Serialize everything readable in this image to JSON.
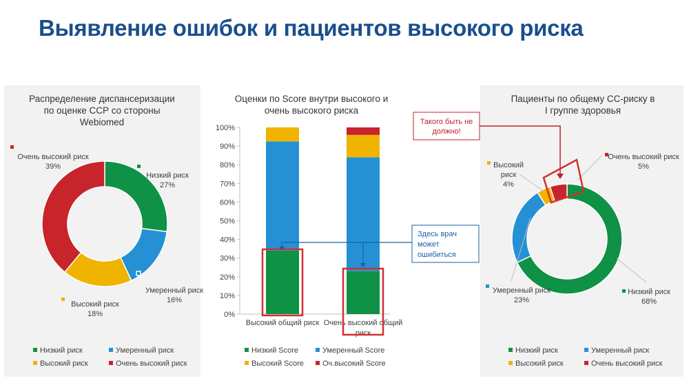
{
  "page_title": "Выявление ошибок и пациентов высокого риска",
  "colors": {
    "green": "#0f9146",
    "blue": "#2591d4",
    "yellow": "#f0b400",
    "red": "#c8242b",
    "highlight": "#d32f2f",
    "callout_text_red": "#c0202a",
    "callout_text_blue": "#1a5fa8"
  },
  "chart_data": [
    {
      "type": "pie",
      "variant": "donut",
      "title": "Распределение диспансеризации по оценке ССР со стороны Webiomed",
      "title_lines": [
        "Распределение диспансеризации",
        "по оценке ССР со стороны",
        "Webiomed"
      ],
      "slices": [
        {
          "label": "Низкий риск",
          "value": 27,
          "value_label": "27%",
          "color": "#0f9146"
        },
        {
          "label": "Умеренный риск",
          "value": 16,
          "value_label": "16%",
          "color": "#2591d4"
        },
        {
          "label": "Высокий риск",
          "value": 18,
          "value_label": "18%",
          "color": "#f0b400"
        },
        {
          "label": "Очень высокий риск",
          "value": 39,
          "value_label": "39%",
          "color": "#c8242b"
        }
      ],
      "legend": [
        "Низкий риск",
        "Умеренный риск",
        "Высокий риск",
        "Очень высокий риск"
      ],
      "legend_placement": "bottom"
    },
    {
      "type": "bar",
      "variant": "stacked-100",
      "title": "Оценки по Score внутри высокого и очень высокого риска",
      "title_lines": [
        "Оценки по Score внутри высокого и",
        "очень высокого риска"
      ],
      "categories": [
        "Высокий общий риск",
        "Очень высокий общий риск"
      ],
      "category_lines": [
        [
          "Высокий общий риск"
        ],
        [
          "Очень высокий общий",
          "риск"
        ]
      ],
      "series": [
        {
          "name": "Низкий Score",
          "color": "#0f9146",
          "values": [
            34,
            23
          ]
        },
        {
          "name": "Умеренный Score",
          "color": "#2591d4",
          "values": [
            58.5,
            61
          ]
        },
        {
          "name": "Высокий Score",
          "color": "#f0b400",
          "values": [
            7.5,
            12
          ]
        },
        {
          "name": "Оч.высокий Score",
          "color": "#c8242b",
          "values": [
            0,
            4
          ]
        }
      ],
      "y_ticks": [
        "0%",
        "10%",
        "20%",
        "30%",
        "40%",
        "50%",
        "60%",
        "70%",
        "80%",
        "90%",
        "100%"
      ],
      "ylim": [
        0,
        100
      ],
      "grid": false,
      "legend_placement": "bottom"
    },
    {
      "type": "pie",
      "variant": "donut",
      "title": "Пациенты по общему СС-риску в I группе здоровья",
      "title_lines": [
        "Пациенты по общему СС-риску в",
        "I группе здоровья"
      ],
      "slices": [
        {
          "label": "Низкий риск",
          "value": 68,
          "value_label": "68%",
          "color": "#0f9146"
        },
        {
          "label": "Умеренный риск",
          "value": 23,
          "value_label": "23%",
          "color": "#2591d4"
        },
        {
          "label": "Высокий риск",
          "value": 4,
          "value_label": "4%",
          "color": "#f0b400"
        },
        {
          "label": "Очень высокий риск",
          "value": 5,
          "value_label": "5%",
          "color": "#c8242b"
        }
      ],
      "legend": [
        "Низкий риск",
        "Умеренный риск",
        "Высокий риск",
        "Очень высокий риск"
      ],
      "legend_placement": "bottom"
    }
  ],
  "callouts": {
    "should_not_be_lines": [
      "Такого быть не",
      "должно!"
    ],
    "doctor_may_err_lines": [
      "Здесь врач",
      "может",
      "ошибиться"
    ]
  },
  "labels": {
    "left_low_lines": [
      "Низкий риск",
      "27%"
    ],
    "left_moderate_lines": [
      "Умеренный риск",
      "16%"
    ],
    "left_high_lines": [
      "Высокий риск",
      "18%"
    ],
    "left_very_high_lines": [
      "Очень высокий риск",
      "39%"
    ],
    "right_high_lines": [
      "Высокий",
      "риск",
      "4%"
    ],
    "right_very_high_lines": [
      "Очень высокий риск",
      "5%"
    ],
    "right_moderate_lines": [
      "Умеренный риск",
      "23%"
    ],
    "right_low_lines": [
      "Низкий риск",
      "68%"
    ]
  }
}
